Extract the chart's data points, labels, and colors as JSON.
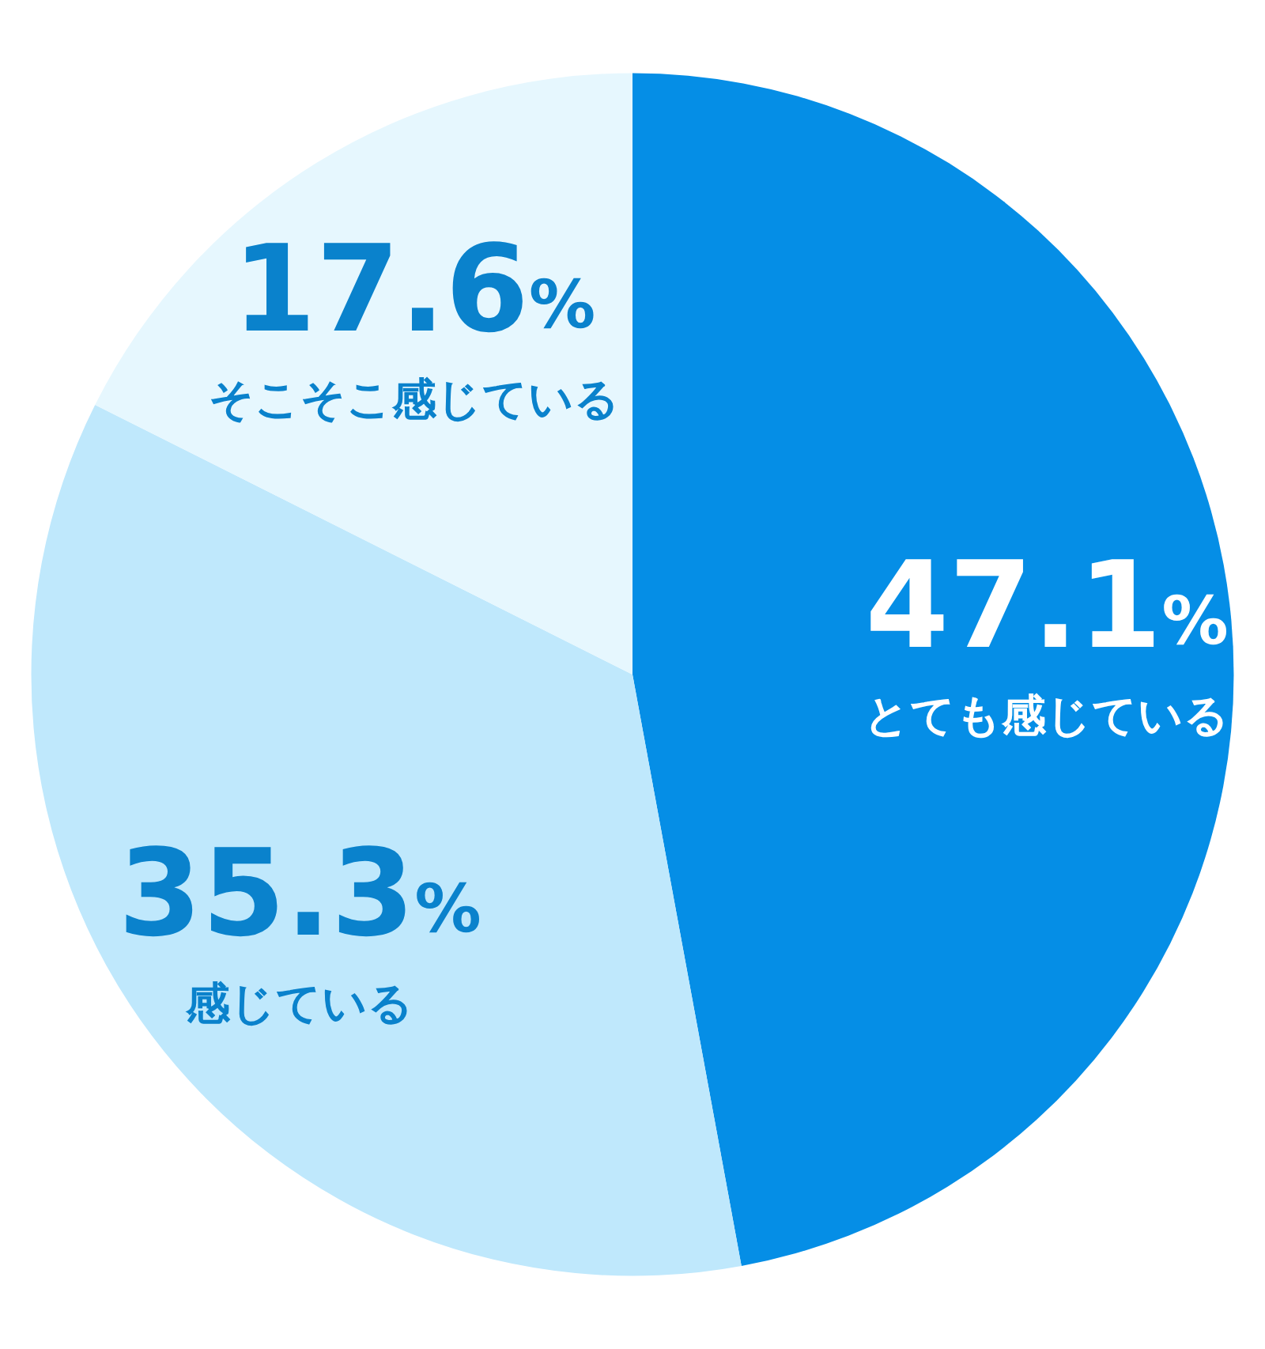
{
  "chart_data": {
    "type": "pie",
    "categories": [
      "とても感じている",
      "感じている",
      "そこそこ感じている"
    ],
    "values": [
      47.1,
      35.3,
      17.6
    ],
    "value_labels": [
      "47.1%",
      "35.3%",
      "17.6%"
    ],
    "colors": [
      "#058ee6",
      "#bfe8fc",
      "#e6f7fe"
    ],
    "legend": false
  }
}
